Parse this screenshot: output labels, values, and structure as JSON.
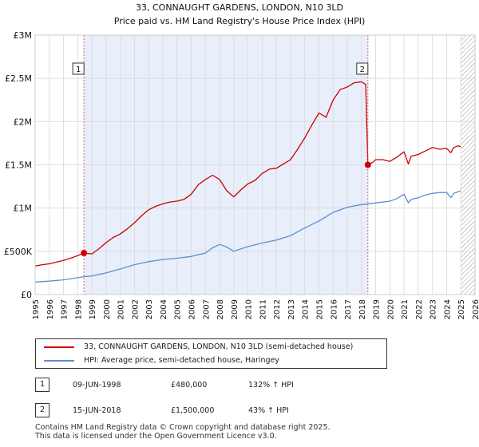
{
  "chart_data": {
    "type": "line",
    "title": "33, CONNAUGHT GARDENS, LONDON, N10 3LD",
    "subtitle": "Price paid vs. HM Land Registry's House Price Index (HPI)",
    "xlabel": "",
    "ylabel": "",
    "xlim": [
      1995,
      2026
    ],
    "ylim": [
      0,
      3000000
    ],
    "yticks": [
      0,
      500000,
      1000000,
      1500000,
      2000000,
      2500000,
      3000000
    ],
    "ytick_labels": [
      "£0",
      "£500K",
      "£1M",
      "£1.5M",
      "£2M",
      "£2.5M",
      "£3M"
    ],
    "xticks": [
      1995,
      1996,
      1997,
      1998,
      1999,
      2000,
      2001,
      2002,
      2003,
      2004,
      2005,
      2006,
      2007,
      2008,
      2009,
      2010,
      2011,
      2012,
      2013,
      2014,
      2015,
      2016,
      2017,
      2018,
      2019,
      2020,
      2021,
      2022,
      2023,
      2024,
      2025,
      2026
    ],
    "xtick_labels": [
      "1995",
      "1996",
      "1997",
      "1998",
      "1999",
      "2000",
      "2001",
      "2002",
      "2003",
      "2004",
      "2005",
      "2006",
      "2007",
      "2008",
      "2009",
      "2010",
      "2011",
      "2012",
      "2013",
      "2014",
      "2015",
      "2016",
      "2017",
      "2018",
      "2019",
      "2020",
      "2021",
      "2022",
      "2023",
      "2024",
      "2025",
      "2026"
    ],
    "grid": true,
    "shaded_region": {
      "from": 1998.44,
      "to": 2018.45,
      "color": "#e8eefa"
    },
    "hatched_region": {
      "from": 2025.0,
      "to": 2026.0
    },
    "series": [
      {
        "name": "33, CONNAUGHT GARDENS, LONDON, N10 3LD (semi-detached house)",
        "color": "#cc0000",
        "x": [
          1995.0,
          1995.5,
          1996.0,
          1996.5,
          1997.0,
          1997.5,
          1998.0,
          1998.44,
          1999.0,
          1999.5,
          2000.0,
          2000.5,
          2001.0,
          2001.5,
          2002.0,
          2002.5,
          2003.0,
          2003.5,
          2004.0,
          2004.5,
          2005.0,
          2005.5,
          2006.0,
          2006.5,
          2007.0,
          2007.5,
          2008.0,
          2008.5,
          2009.0,
          2009.5,
          2010.0,
          2010.5,
          2011.0,
          2011.5,
          2012.0,
          2012.5,
          2013.0,
          2013.5,
          2014.0,
          2014.5,
          2015.0,
          2015.5,
          2016.0,
          2016.5,
          2017.0,
          2017.5,
          2018.0,
          2018.3,
          2018.45,
          2018.8,
          2019.0,
          2019.5,
          2020.0,
          2020.5,
          2021.0,
          2021.3,
          2021.5,
          2022.0,
          2022.5,
          2023.0,
          2023.5,
          2024.0,
          2024.3,
          2024.5,
          2024.8,
          2025.0
        ],
        "y": [
          330000,
          345000,
          355000,
          375000,
          395000,
          420000,
          450000,
          480000,
          470000,
          530000,
          600000,
          660000,
          700000,
          760000,
          830000,
          910000,
          980000,
          1020000,
          1050000,
          1070000,
          1080000,
          1100000,
          1160000,
          1270000,
          1330000,
          1380000,
          1330000,
          1200000,
          1130000,
          1210000,
          1280000,
          1320000,
          1400000,
          1450000,
          1460000,
          1510000,
          1560000,
          1680000,
          1810000,
          1960000,
          2100000,
          2050000,
          2250000,
          2370000,
          2400000,
          2450000,
          2460000,
          2430000,
          1500000,
          1530000,
          1560000,
          1560000,
          1540000,
          1590000,
          1650000,
          1510000,
          1600000,
          1620000,
          1660000,
          1700000,
          1680000,
          1690000,
          1640000,
          1700000,
          1720000,
          1710000
        ]
      },
      {
        "name": "HPI: Average price, semi-detached house, Haringey",
        "color": "#5b8fd0",
        "x": [
          1995.0,
          1996.0,
          1997.0,
          1998.0,
          1998.44,
          1999.0,
          2000.0,
          2001.0,
          2002.0,
          2003.0,
          2004.0,
          2005.0,
          2006.0,
          2007.0,
          2007.5,
          2008.0,
          2008.5,
          2009.0,
          2010.0,
          2011.0,
          2012.0,
          2013.0,
          2014.0,
          2015.0,
          2016.0,
          2017.0,
          2018.0,
          2018.45,
          2019.0,
          2020.0,
          2020.5,
          2021.0,
          2021.3,
          2021.5,
          2022.0,
          2022.5,
          2023.0,
          2023.5,
          2024.0,
          2024.3,
          2024.5,
          2025.0
        ],
        "y": [
          145000,
          155000,
          170000,
          195000,
          207000,
          215000,
          250000,
          295000,
          345000,
          380000,
          405000,
          420000,
          440000,
          480000,
          540000,
          580000,
          550000,
          500000,
          555000,
          595000,
          630000,
          680000,
          770000,
          850000,
          950000,
          1010000,
          1040000,
          1050000,
          1060000,
          1080000,
          1110000,
          1160000,
          1060000,
          1100000,
          1120000,
          1150000,
          1170000,
          1180000,
          1180000,
          1120000,
          1170000,
          1200000
        ]
      }
    ],
    "transactions": [
      {
        "label": "1",
        "x": 1998.44,
        "y": 480000
      },
      {
        "label": "2",
        "x": 2018.45,
        "y": 1500000
      }
    ]
  },
  "legend": {
    "red_label": "33, CONNAUGHT GARDENS, LONDON, N10 3LD (semi-detached house)",
    "blue_label": "HPI: Average price, semi-detached house, Haringey"
  },
  "transactions_table": [
    {
      "num": "1",
      "date": "09-JUN-1998",
      "price": "£480,000",
      "hpi": "132% ↑ HPI"
    },
    {
      "num": "2",
      "date": "15-JUN-2018",
      "price": "£1,500,000",
      "hpi": "43% ↑ HPI"
    }
  ],
  "footer": {
    "line1": "Contains HM Land Registry data © Crown copyright and database right 2025.",
    "line2": "This data is licensed under the Open Government Licence v3.0."
  }
}
